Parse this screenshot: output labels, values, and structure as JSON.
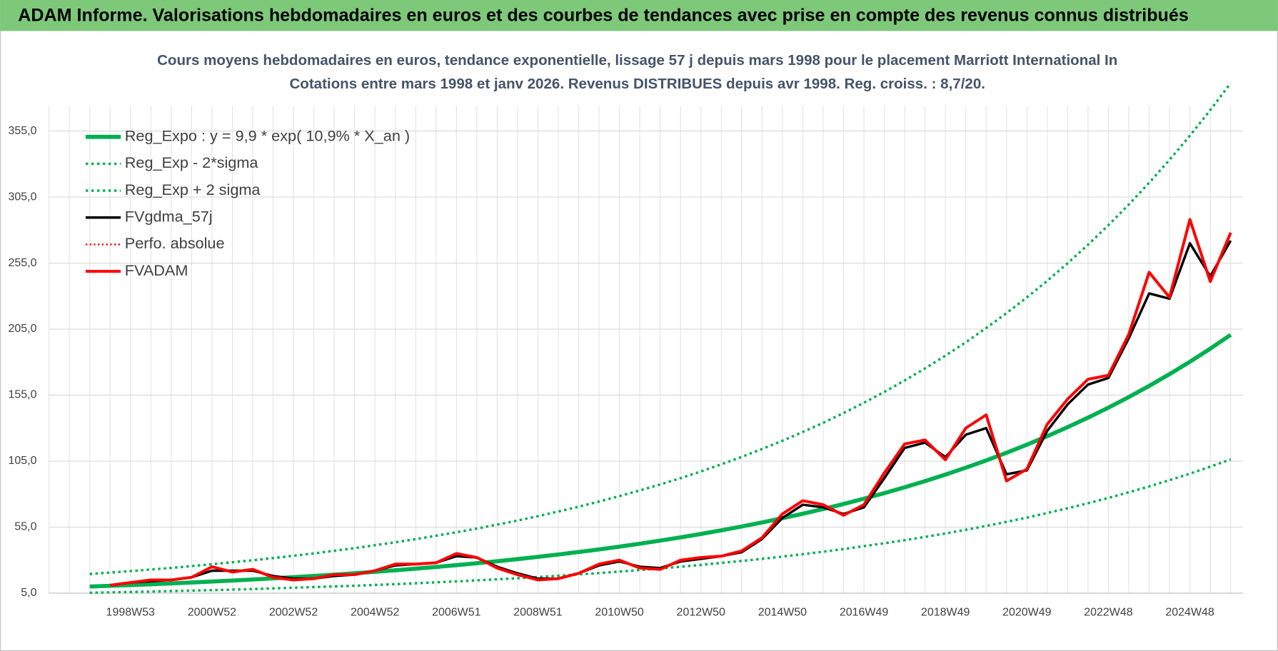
{
  "header": {
    "title": "ADAM Informe. Valorisations hebdomadaires en euros et des courbes de tendances avec prise en compte des revenus connus distribués"
  },
  "chart_data": {
    "type": "line",
    "title": "Cours moyens hebdomadaires en euros, tendance exponentielle, lissage 57 j depuis mars 1998 pour le placement Marriott International In",
    "subtitle": "Cotations entre mars 1998 et janv 2026. Revenus DISTRIBUES depuis avr 1998. Reg. croiss. : 8,7/20.",
    "categories": [
      null,
      null,
      "1998W53",
      null,
      null,
      null,
      "2000W52",
      null,
      null,
      null,
      "2002W52",
      null,
      null,
      null,
      "2004W52",
      null,
      null,
      null,
      "2006W51",
      null,
      null,
      null,
      "2008W51",
      null,
      null,
      null,
      "2010W50",
      null,
      null,
      null,
      "2012W50",
      null,
      null,
      null,
      "2014W50",
      null,
      null,
      null,
      "2016W49",
      null,
      null,
      null,
      "2018W49",
      null,
      null,
      null,
      "2020W49",
      null,
      null,
      null,
      "2022W48",
      null,
      null,
      null,
      "2024W48",
      null,
      null
    ],
    "ylim": [
      5,
      395
    ],
    "yticks": [
      {
        "value": 5,
        "label": "5,0"
      },
      {
        "value": 55,
        "label": "55,0"
      },
      {
        "value": 105,
        "label": "105,0"
      },
      {
        "value": 155,
        "label": "155,0"
      },
      {
        "value": 205,
        "label": "205,0"
      },
      {
        "value": 255,
        "label": "255,0"
      },
      {
        "value": 305,
        "label": "305,0"
      },
      {
        "value": 355,
        "label": "355,0"
      }
    ],
    "grid": true,
    "legend": "top-left",
    "series": [
      {
        "name": "Reg_Expo : y = 9,9 * exp( 10,9% *  X_an )",
        "color": "#00b050",
        "line_style": "solid",
        "width": 5,
        "values": [
          10.0,
          10.55,
          11.13,
          11.74,
          12.38,
          13.07,
          13.79,
          14.54,
          15.34,
          16.19,
          17.08,
          18.02,
          19.01,
          20.05,
          21.16,
          22.32,
          23.55,
          24.85,
          26.21,
          27.66,
          29.18,
          30.78,
          32.48,
          34.26,
          36.15,
          38.14,
          40.24,
          42.45,
          44.79,
          47.25,
          49.85,
          52.59,
          55.49,
          58.54,
          61.76,
          65.16,
          68.74,
          72.53,
          76.52,
          80.73,
          85.17,
          89.86,
          94.8,
          100.02,
          105.52,
          111.33,
          117.45,
          123.91,
          130.73,
          137.92,
          145.51,
          153.51,
          161.96,
          170.87,
          180.27,
          190.19,
          200.65
        ]
      },
      {
        "name": "Reg_Exp - 2*sigma",
        "color": "#00b050",
        "line_style": "dotted",
        "width": 3,
        "values": [
          5.3,
          5.6,
          5.9,
          6.2,
          6.6,
          6.9,
          7.3,
          7.7,
          8.1,
          8.6,
          9.1,
          9.6,
          10.1,
          10.6,
          11.2,
          11.8,
          12.5,
          13.2,
          13.9,
          14.7,
          15.5,
          16.3,
          17.2,
          18.2,
          19.2,
          20.2,
          21.3,
          22.5,
          23.7,
          25.0,
          26.4,
          27.9,
          29.4,
          31.0,
          32.7,
          34.5,
          36.4,
          38.4,
          40.6,
          42.8,
          45.1,
          47.6,
          50.2,
          53.0,
          55.9,
          59.0,
          62.2,
          65.7,
          69.3,
          73.1,
          77.1,
          81.4,
          85.8,
          90.6,
          95.5,
          100.8,
          106.3
        ]
      },
      {
        "name": "Reg_Exp + 2 sigma",
        "color": "#00b050",
        "line_style": "dotted",
        "width": 3,
        "values": [
          19.5,
          20.6,
          21.7,
          22.9,
          24.1,
          25.5,
          26.9,
          28.4,
          29.9,
          31.6,
          33.3,
          35.1,
          37.1,
          39.1,
          41.3,
          43.5,
          45.9,
          48.5,
          51.1,
          53.9,
          56.9,
          60.0,
          63.3,
          66.8,
          70.5,
          74.4,
          78.5,
          82.8,
          87.3,
          92.1,
          97.2,
          102.6,
          108.2,
          114.2,
          120.4,
          127.1,
          134.0,
          141.4,
          149.2,
          157.4,
          166.1,
          175.2,
          184.9,
          195.0,
          205.8,
          217.1,
          229.0,
          241.6,
          254.9,
          268.9,
          283.7,
          299.3,
          315.8,
          333.2,
          351.5,
          370.9,
          391.3
        ]
      },
      {
        "name": "FVgdma_57j",
        "color": "#000000",
        "line_style": "solid",
        "width": 3,
        "values": [
          null,
          11,
          13,
          14,
          15,
          17,
          22,
          22,
          22,
          18,
          16,
          16,
          18,
          19,
          22,
          26,
          27,
          28,
          33,
          32,
          25,
          20,
          16,
          16,
          20,
          26,
          29,
          25,
          24,
          29,
          31,
          33,
          36,
          46,
          62,
          72,
          70,
          65,
          70,
          92,
          115,
          119,
          108,
          125,
          130,
          95,
          98,
          128,
          148,
          163,
          168,
          198,
          232,
          228,
          270,
          245,
          272
        ]
      },
      {
        "name": "Perfo. absolue",
        "color": "#ff0000",
        "line_style": "dotted",
        "width": 2,
        "values": [
          null,
          11,
          13,
          15,
          15,
          17,
          25,
          21,
          23,
          17,
          15,
          16,
          19,
          19,
          22,
          27,
          27,
          28,
          35,
          32,
          24,
          19,
          15,
          16,
          20,
          27,
          30,
          24,
          23,
          30,
          32,
          33,
          37,
          47,
          65,
          75,
          72,
          64,
          72,
          96,
          118,
          121,
          106,
          130,
          140,
          90,
          99,
          133,
          152,
          167,
          170,
          201,
          248,
          229,
          288,
          241,
          278
        ]
      },
      {
        "name": "FVADAM",
        "color": "#ff0000",
        "line_style": "solid",
        "width": 3.5,
        "values": [
          null,
          11,
          13,
          15,
          15,
          17,
          25,
          21,
          23,
          17,
          15,
          16,
          19,
          19,
          22,
          27,
          27,
          28,
          35,
          32,
          24,
          19,
          15,
          16,
          20,
          27,
          30,
          24,
          23,
          30,
          32,
          33,
          37,
          47,
          65,
          75,
          72,
          64,
          72,
          96,
          118,
          121,
          106,
          130,
          140,
          90,
          99,
          133,
          152,
          167,
          170,
          201,
          248,
          229,
          288,
          241,
          278
        ]
      }
    ]
  }
}
